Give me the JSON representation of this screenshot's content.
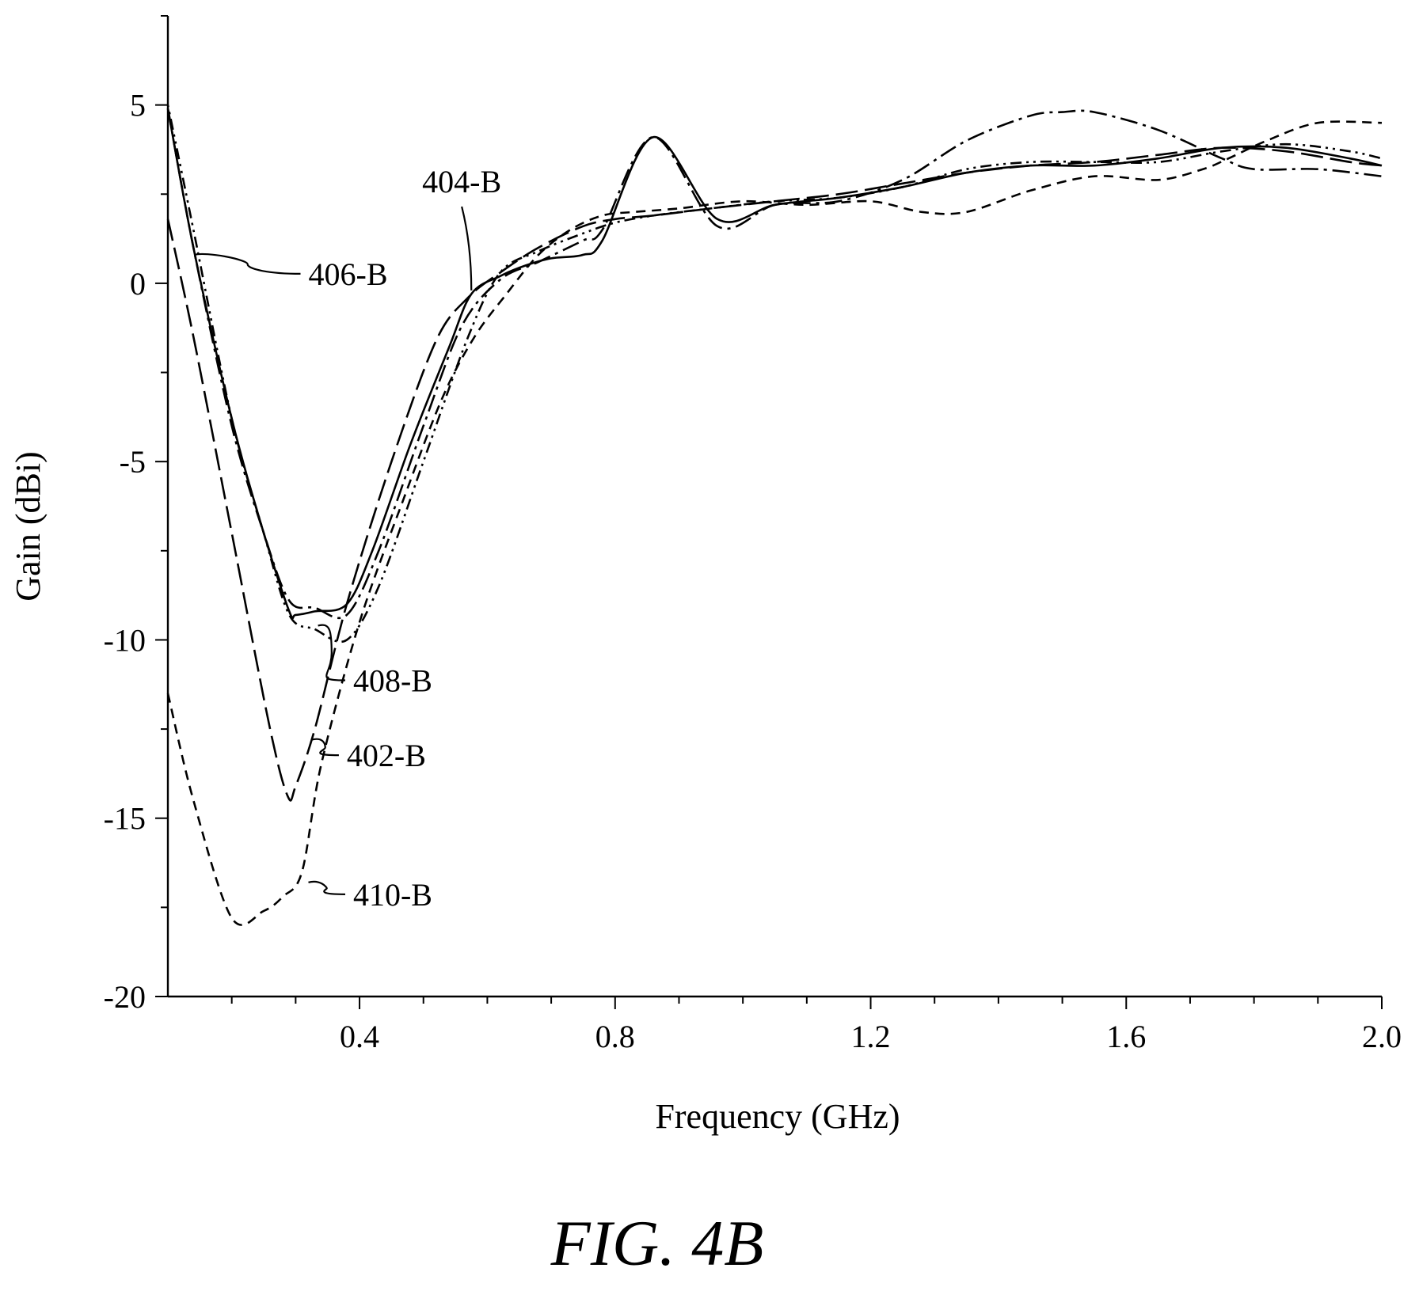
{
  "figure_caption": "FIG. 4B",
  "chart_data": {
    "type": "line",
    "xlabel": "Frequency (GHz)",
    "ylabel": "Gain (dBi)",
    "xlim": [
      0.1,
      2.0
    ],
    "ylim": [
      -20,
      7.5
    ],
    "xticks": [
      0.4,
      0.8,
      1.2,
      1.6,
      2.0
    ],
    "xtick_labels": [
      "0.4",
      "0.8",
      "1.2",
      "1.6",
      "2.0"
    ],
    "yticks": [
      5,
      0,
      -5,
      -10,
      -15,
      -20
    ],
    "ytick_labels": [
      "5",
      "0",
      "-5",
      "-10",
      "-15",
      "-20"
    ],
    "grid": false,
    "legend": "none",
    "series": [
      {
        "name": "402-B",
        "dash": "28 9",
        "x": [
          0.1,
          0.14,
          0.2,
          0.26,
          0.288,
          0.3,
          0.33,
          0.38,
          0.45,
          0.52,
          0.57,
          0.62,
          0.68,
          0.75,
          0.8,
          0.86,
          0.95,
          1.05,
          1.15,
          1.25,
          1.35,
          1.45,
          1.55,
          1.65,
          1.75,
          1.85,
          1.95,
          2.0
        ],
        "y": [
          1.8,
          -1.5,
          -7.0,
          -12.5,
          -14.4,
          -14.1,
          -12.5,
          -9.0,
          -5.0,
          -1.6,
          -0.4,
          0.3,
          1.0,
          1.6,
          1.8,
          1.9,
          2.1,
          2.3,
          2.5,
          2.8,
          3.1,
          3.3,
          3.4,
          3.6,
          3.8,
          3.7,
          3.4,
          3.3
        ]
      },
      {
        "name": "404-B",
        "dash": "",
        "x": [
          0.1,
          0.14,
          0.2,
          0.25,
          0.29,
          0.3,
          0.33,
          0.38,
          0.42,
          0.48,
          0.54,
          0.575,
          0.62,
          0.66,
          0.7,
          0.75,
          0.78,
          0.86,
          0.96,
          1.05,
          1.15,
          1.25,
          1.35,
          1.45,
          1.55,
          1.65,
          1.75,
          1.85,
          1.95,
          2.0
        ],
        "y": [
          4.9,
          1.0,
          -3.8,
          -7.0,
          -9.2,
          -9.3,
          -9.2,
          -9.0,
          -7.5,
          -4.5,
          -1.8,
          -0.3,
          0.2,
          0.5,
          0.7,
          0.8,
          1.2,
          4.1,
          1.8,
          2.2,
          2.4,
          2.7,
          3.1,
          3.3,
          3.3,
          3.5,
          3.8,
          3.8,
          3.5,
          3.3
        ]
      },
      {
        "name": "406-B",
        "dash": "22 7 4 7",
        "x": [
          0.1,
          0.14,
          0.2,
          0.25,
          0.29,
          0.33,
          0.38,
          0.43,
          0.5,
          0.56,
          0.62,
          0.68,
          0.75,
          0.78,
          0.86,
          0.96,
          1.05,
          1.15,
          1.25,
          1.35,
          1.45,
          1.5,
          1.55,
          1.65,
          1.75,
          1.8,
          1.9,
          2.0
        ],
        "y": [
          4.9,
          1.0,
          -4.0,
          -7.0,
          -8.9,
          -9.1,
          -9.3,
          -7.5,
          -4.0,
          -1.2,
          0.1,
          0.6,
          1.2,
          1.5,
          4.1,
          1.6,
          2.2,
          2.3,
          2.9,
          4.0,
          4.7,
          4.8,
          4.8,
          4.3,
          3.5,
          3.2,
          3.2,
          3.0
        ]
      },
      {
        "name": "408-B",
        "dash": "3 6 3 6 14 6",
        "x": [
          0.1,
          0.14,
          0.2,
          0.25,
          0.29,
          0.33,
          0.38,
          0.43,
          0.5,
          0.57,
          0.62,
          0.68,
          0.75,
          0.8,
          0.86,
          0.95,
          1.05,
          1.15,
          1.25,
          1.35,
          1.45,
          1.55,
          1.65,
          1.75,
          1.85,
          1.95,
          2.0
        ],
        "y": [
          5.0,
          1.5,
          -3.8,
          -7.0,
          -9.3,
          -9.7,
          -10.0,
          -8.5,
          -5.0,
          -1.5,
          0.3,
          0.9,
          1.4,
          1.7,
          1.9,
          2.1,
          2.3,
          2.4,
          2.7,
          3.2,
          3.4,
          3.4,
          3.4,
          3.7,
          3.9,
          3.7,
          3.5
        ]
      },
      {
        "name": "410-B",
        "dash": "12 8",
        "x": [
          0.1,
          0.14,
          0.2,
          0.25,
          0.28,
          0.31,
          0.34,
          0.4,
          0.47,
          0.53,
          0.58,
          0.63,
          0.68,
          0.73,
          0.78,
          0.83,
          0.9,
          1.0,
          1.1,
          1.2,
          1.28,
          1.35,
          1.45,
          1.55,
          1.65,
          1.72,
          1.76,
          1.82,
          1.9,
          2.0
        ],
        "y": [
          -11.5,
          -14.5,
          -17.8,
          -17.6,
          -17.2,
          -16.5,
          -13.5,
          -9.5,
          -6.0,
          -3.2,
          -1.5,
          -0.3,
          0.8,
          1.5,
          1.9,
          2.0,
          2.1,
          2.3,
          2.2,
          2.3,
          2.0,
          2.0,
          2.6,
          3.0,
          2.9,
          3.2,
          3.5,
          4.0,
          4.5,
          4.5
        ]
      }
    ],
    "annotations": [
      {
        "text": "406-B",
        "series": "406-B",
        "anchor": [
          0.142,
          0.8
        ],
        "label_at": [
          0.32,
          0.0
        ]
      },
      {
        "text": "404-B",
        "series": "404-B",
        "anchor": [
          0.575,
          -0.2
        ],
        "label_at": [
          0.56,
          2.55
        ]
      },
      {
        "text": "408-B",
        "series": "408-B",
        "anchor": [
          0.335,
          -9.6
        ],
        "label_at": [
          0.39,
          -11.4
        ]
      },
      {
        "text": "402-B",
        "series": "402-B",
        "anchor": [
          0.325,
          -12.8
        ],
        "label_at": [
          0.38,
          -13.5
        ]
      },
      {
        "text": "410-B",
        "series": "410-B",
        "anchor": [
          0.32,
          -16.8
        ],
        "label_at": [
          0.39,
          -17.4
        ]
      }
    ]
  }
}
